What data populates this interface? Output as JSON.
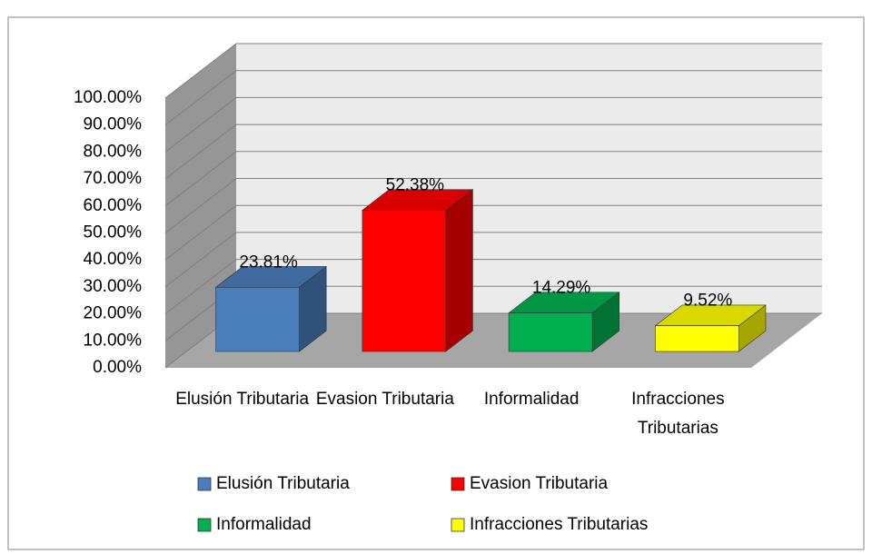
{
  "chart_data": {
    "type": "bar3d",
    "categories": [
      "Elusión Tributaria",
      "Evasion Tributaria",
      "Informalidad",
      "Infracciones Tributarias"
    ],
    "values": [
      23.81,
      52.38,
      14.29,
      9.52
    ],
    "value_labels": [
      "23.81%",
      "52.38%",
      "14.29%",
      "9.52%"
    ],
    "colors": [
      "#4a7ebb",
      "#ff0000",
      "#00b050",
      "#ffff00"
    ],
    "ylim": [
      0,
      100
    ],
    "yticks": [
      {
        "value": 0,
        "label": "0.00%"
      },
      {
        "value": 10,
        "label": "10.00%"
      },
      {
        "value": 20,
        "label": "20.00%"
      },
      {
        "value": 30,
        "label": "30.00%"
      },
      {
        "value": 40,
        "label": "40.00%"
      },
      {
        "value": 50,
        "label": "50.00%"
      },
      {
        "value": 60,
        "label": "60.00%"
      },
      {
        "value": 70,
        "label": "70.00%"
      },
      {
        "value": 80,
        "label": "80.00%"
      },
      {
        "value": 90,
        "label": "90.00%"
      },
      {
        "value": 100,
        "label": "100.00%"
      }
    ],
    "grid": true,
    "legend": "bottom"
  }
}
